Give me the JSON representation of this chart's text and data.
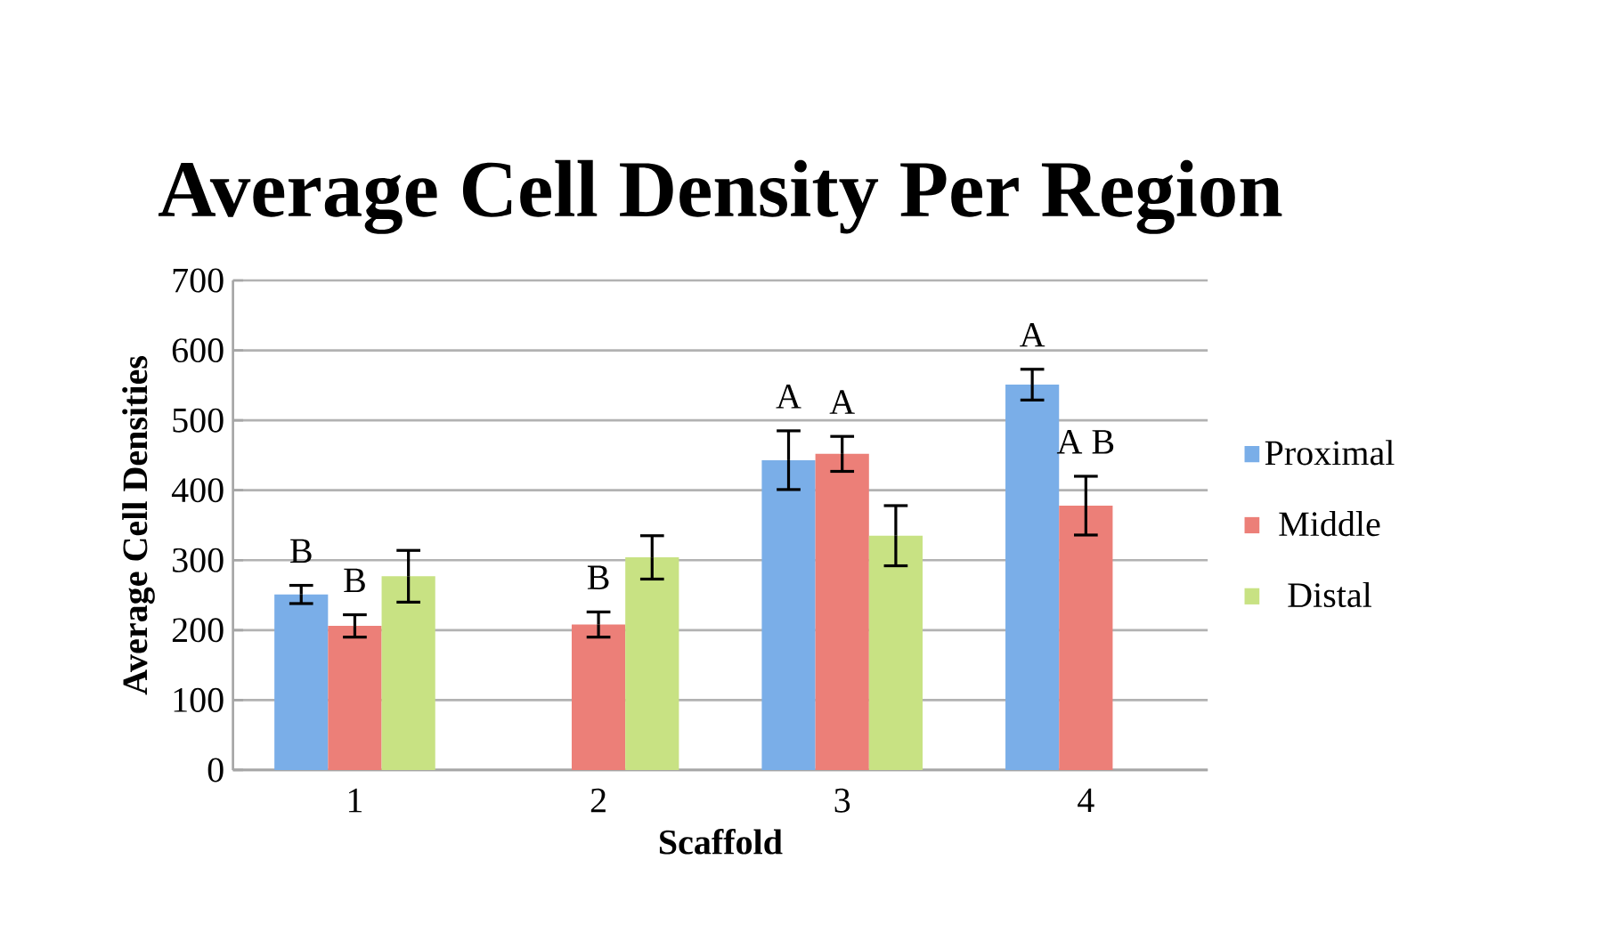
{
  "chart_data": {
    "type": "bar",
    "title": "Average Cell Density Per Region",
    "xlabel": "Scaffold",
    "ylabel": "Average Cell Densities",
    "categories": [
      "1",
      "2",
      "3",
      "4"
    ],
    "series": [
      {
        "name": "Proximal",
        "color": "#7aaee8",
        "values": [
          251,
          null,
          443,
          551
        ],
        "errors": [
          13,
          null,
          42,
          22
        ],
        "value_labels": [
          "B",
          null,
          "A",
          "A"
        ]
      },
      {
        "name": "Middle",
        "color": "#ec7f78",
        "values": [
          206,
          208,
          452,
          378
        ],
        "errors": [
          16,
          18,
          25,
          42
        ],
        "value_labels": [
          "B",
          "B",
          "A",
          "A B"
        ]
      },
      {
        "name": "Distal",
        "color": "#c8e283",
        "values": [
          277,
          304,
          335,
          null
        ],
        "errors": [
          37,
          31,
          43,
          null
        ]
      }
    ],
    "ylim": [
      0,
      700
    ],
    "yticks": [
      0,
      100,
      200,
      300,
      400,
      500,
      600,
      700
    ],
    "grid": "y",
    "legend": "right"
  }
}
